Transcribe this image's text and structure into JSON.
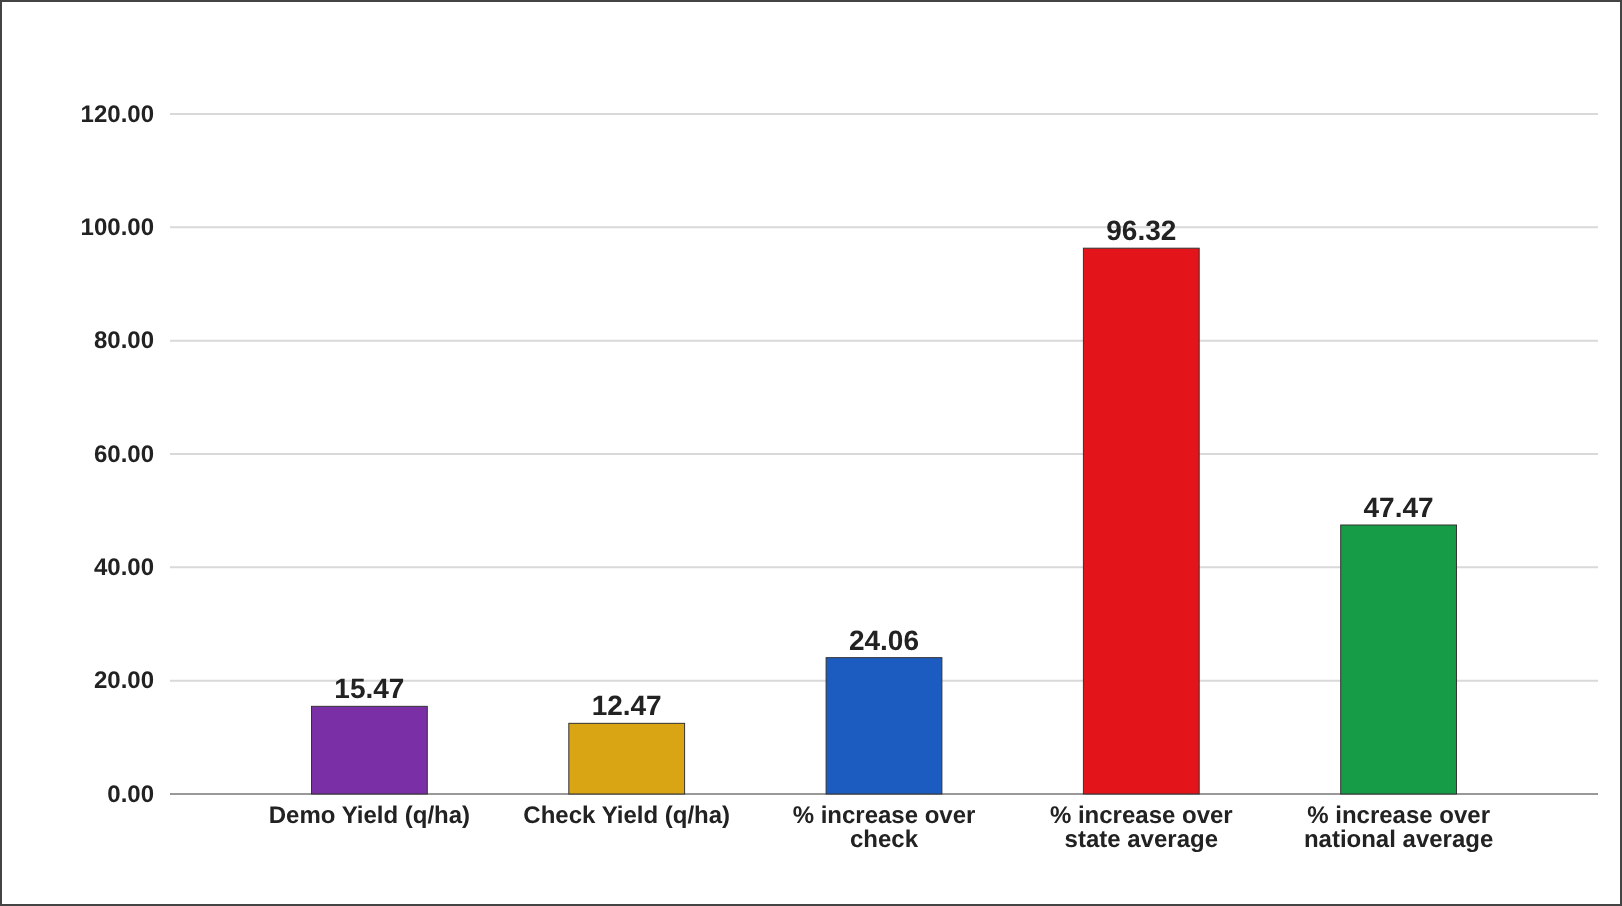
{
  "chart_data": {
    "type": "bar",
    "categories": [
      "Demo Yield (q/ha)",
      "Check Yield (q/ha)",
      "% increase over check",
      "% increase over state average",
      "% increase over national average"
    ],
    "values": [
      15.47,
      12.47,
      24.06,
      96.32,
      47.47
    ],
    "colors": [
      "#7a2fa6",
      "#d9a514",
      "#1c5bbf",
      "#e3151b",
      "#169c47"
    ],
    "ylim": [
      0,
      120
    ],
    "yticks": [
      {
        "value": 0,
        "label": "0.00"
      },
      {
        "value": 20,
        "label": "20.00"
      },
      {
        "value": 40,
        "label": "40.00"
      },
      {
        "value": 60,
        "label": "60.00"
      },
      {
        "value": 80,
        "label": "80.00"
      },
      {
        "value": 100,
        "label": "100.00"
      },
      {
        "value": 120,
        "label": "120.00"
      }
    ],
    "grid": "y",
    "data_labels": true
  }
}
